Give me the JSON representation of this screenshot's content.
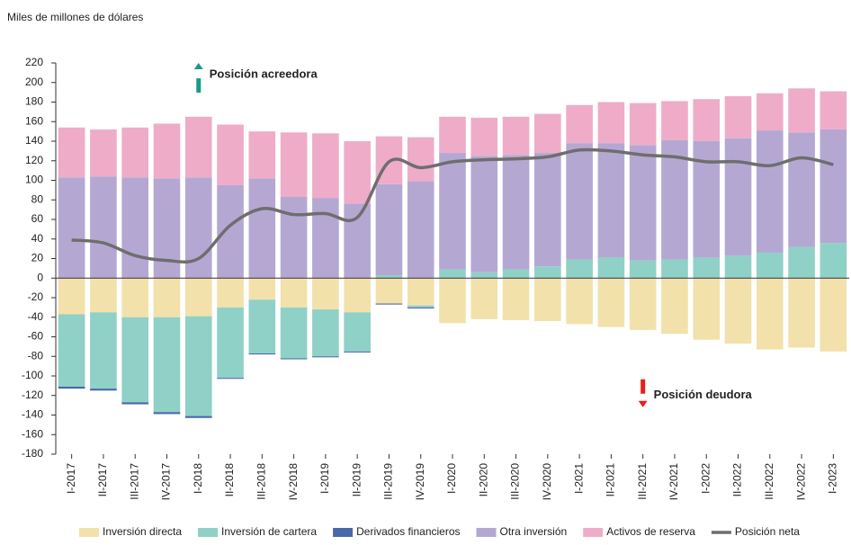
{
  "chart_data": {
    "type": "bar",
    "y_axis_label": "Miles de millones de dólares",
    "annotations": [
      {
        "text": "Posición acreedora",
        "color": "#1a9a8a",
        "direction": "up",
        "category_index": 4,
        "value": 208
      },
      {
        "text": "Posición deudora",
        "color": "#e8201a",
        "direction": "down",
        "category_index": 18,
        "value": -120
      }
    ],
    "categories": [
      "I-2017",
      "II-2017",
      "III-2017",
      "IV-2017",
      "I-2018",
      "II-2018",
      "III-2018",
      "IV-2018",
      "I-2019",
      "II-2019",
      "III-2019",
      "IV-2019",
      "I-2020",
      "II-2020",
      "III-2020",
      "IV-2020",
      "I-2021",
      "II-2021",
      "III-2021",
      "IV-2021",
      "I-2022",
      "II-2022",
      "III-2022",
      "IV-2022",
      "I-2023"
    ],
    "series": [
      {
        "name": "Inversión directa",
        "type": "bar",
        "color": "#f3e1ab",
        "values": [
          -37,
          -35,
          -40,
          -40,
          -39,
          -30,
          -22,
          -30,
          -32,
          -35,
          -26,
          -28,
          -46,
          -42,
          -43,
          -44,
          -47,
          -50,
          -53,
          -57,
          -63,
          -67,
          -73,
          -71,
          -75
        ]
      },
      {
        "name": "Inversión de cartera",
        "type": "bar",
        "color": "#8fd1c7",
        "values": [
          -74,
          -78,
          -87,
          -97,
          -102,
          -72,
          -55,
          -52,
          -48,
          -40,
          3,
          -2,
          9,
          6,
          9,
          12,
          19,
          21,
          18,
          19,
          21,
          23,
          26,
          32,
          36
        ]
      },
      {
        "name": "Derivados financieros",
        "type": "bar",
        "color": "#4a68a8",
        "values": [
          -2,
          -2,
          -2,
          -2,
          -2,
          -1,
          -1,
          -1,
          -1,
          -1,
          -1,
          -1,
          0,
          0,
          0,
          0,
          0,
          0,
          0,
          0,
          0,
          0,
          0,
          0,
          0
        ]
      },
      {
        "name": "Otra inversión",
        "type": "bar",
        "color": "#b4a8d3",
        "values": [
          103,
          104,
          103,
          102,
          103,
          95,
          102,
          83,
          82,
          76,
          93,
          99,
          119,
          119,
          117,
          116,
          119,
          117,
          118,
          122,
          119,
          120,
          125,
          117,
          116
        ]
      },
      {
        "name": "Activos de reserva",
        "type": "bar",
        "color": "#eeacc9",
        "values": [
          51,
          48,
          51,
          56,
          62,
          62,
          48,
          66,
          66,
          64,
          49,
          45,
          37,
          39,
          39,
          40,
          39,
          42,
          43,
          40,
          43,
          43,
          38,
          45,
          39
        ]
      },
      {
        "name": "Posición neta",
        "type": "line",
        "color": "#6e6e6e",
        "values": [
          39,
          36,
          23,
          18,
          20,
          54,
          71,
          65,
          66,
          62,
          119,
          113,
          119,
          121,
          122,
          124,
          131,
          130,
          126,
          124,
          119,
          119,
          115,
          123,
          116
        ]
      }
    ],
    "ylim": [
      -180,
      220
    ],
    "yticks": [
      -180,
      -160,
      -140,
      -120,
      -100,
      -80,
      -60,
      -40,
      -20,
      0,
      20,
      40,
      60,
      80,
      100,
      120,
      140,
      160,
      180,
      200,
      220
    ]
  }
}
